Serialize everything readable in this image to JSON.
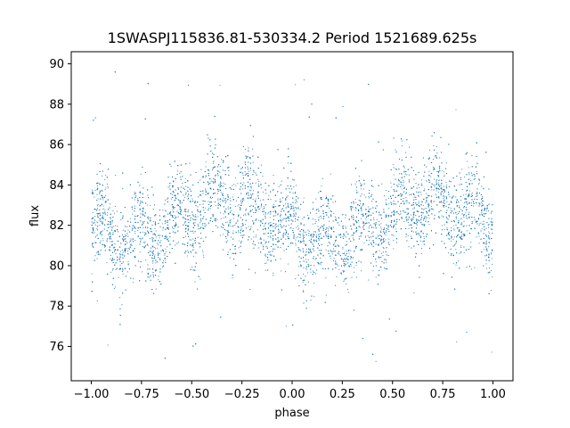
{
  "chart_data": {
    "type": "scatter",
    "title": "1SWASPJ115836.81-530334.2 Period 1521689.625s",
    "xlabel": "phase",
    "ylabel": "flux",
    "xlim": [
      -1.1,
      1.1
    ],
    "ylim": [
      74.3,
      90.6
    ],
    "xticks": [
      -1.0,
      -0.75,
      -0.5,
      -0.25,
      0.0,
      0.25,
      0.5,
      0.75,
      1.0
    ],
    "xtick_labels": [
      "−1.00",
      "−0.75",
      "−0.50",
      "−0.25",
      "0.00",
      "0.25",
      "0.50",
      "0.75",
      "1.00"
    ],
    "yticks": [
      76,
      78,
      80,
      82,
      84,
      86,
      88,
      90
    ],
    "ytick_labels": [
      "76",
      "78",
      "80",
      "82",
      "84",
      "86",
      "88",
      "90"
    ],
    "grid": false,
    "marker_color": "#1f77b4",
    "series": [
      {
        "x_range": [
          -1.0,
          1.0
        ],
        "baseline_flux": 82.0,
        "seasonal_mean": [
          {
            "phase": -1.0,
            "flux": 81.8
          },
          {
            "phase": -0.8,
            "flux": 81.2
          },
          {
            "phase": -0.6,
            "flux": 82.0
          },
          {
            "phase": -0.4,
            "flux": 83.3
          },
          {
            "phase": -0.2,
            "flux": 82.9
          },
          {
            "phase": 0.0,
            "flux": 81.8
          },
          {
            "phase": 0.2,
            "flux": 81.2
          },
          {
            "phase": 0.4,
            "flux": 82.0
          },
          {
            "phase": 0.6,
            "flux": 83.3
          },
          {
            "phase": 0.8,
            "flux": 82.9
          },
          {
            "phase": 1.0,
            "flux": 81.8
          }
        ],
        "flux_spread": 1.1,
        "outlier_range": [
          75.0,
          90.0
        ]
      }
    ]
  }
}
